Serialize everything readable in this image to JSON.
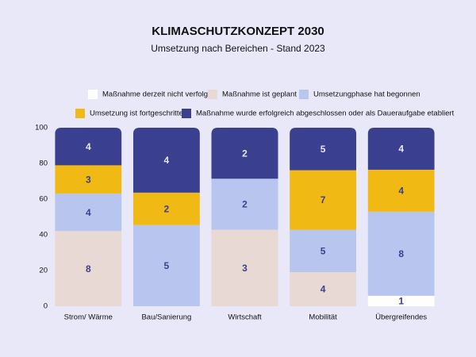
{
  "chart_data": {
    "type": "stacked_bar",
    "normalize": true,
    "title": "KLIMASCHUTZKONZEPT 2030",
    "subtitle": "Umsetzung nach Bereichen - Stand 2023",
    "categories": [
      "Strom/ Wärme",
      "Bau/Sanierung",
      "Wirtschaft",
      "Mobilität",
      "Übergreifendes"
    ],
    "series": [
      {
        "name": "Maßnahme derzeit nicht verfolgt",
        "color": "#ffffff",
        "values": [
          0,
          0,
          0,
          0,
          1
        ]
      },
      {
        "name": "Maßnahme ist geplant",
        "color": "#e8d9d4",
        "values": [
          8,
          0,
          3,
          4,
          0
        ]
      },
      {
        "name": "Umsetzungphase hat begonnen",
        "color": "#b8c6ef",
        "values": [
          4,
          5,
          2,
          5,
          8
        ]
      },
      {
        "name": "Umsetzung ist fortgeschritten",
        "color": "#f0b914",
        "values": [
          3,
          2,
          0,
          7,
          4
        ]
      },
      {
        "name": "Maßnahme wurde erfolgreich abgeschlossen oder als Daueraufgabe etabliert",
        "color": "#3b3f8f",
        "values": [
          4,
          4,
          2,
          5,
          4
        ]
      }
    ],
    "ylim": [
      0,
      100
    ],
    "yticks": [
      0,
      20,
      40,
      60,
      80,
      100
    ]
  }
}
